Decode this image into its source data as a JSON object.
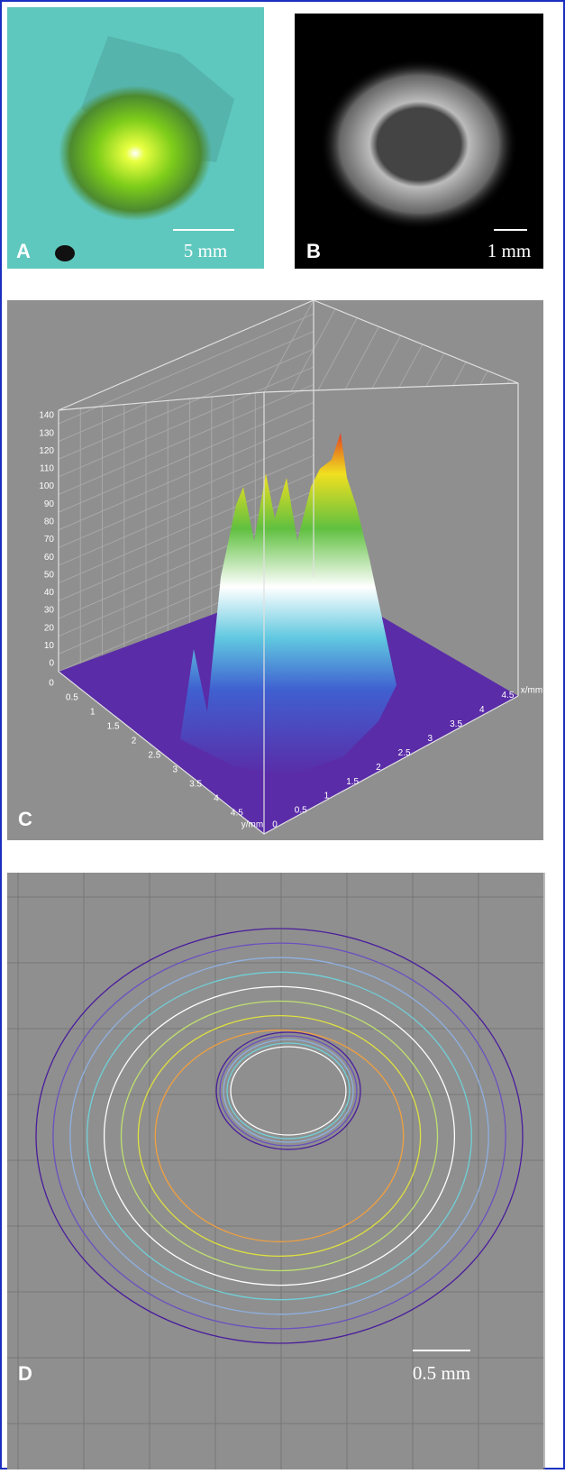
{
  "panels": {
    "a": {
      "label": "A",
      "scale_bar": "5 mm"
    },
    "b": {
      "label": "B",
      "scale_bar": "1 mm"
    },
    "c": {
      "label": "C",
      "z_ticks": [
        "0",
        "10",
        "20",
        "30",
        "40",
        "50",
        "60",
        "70",
        "80",
        "90",
        "100",
        "110",
        "120",
        "130",
        "140"
      ],
      "x_ticks": [
        "0",
        "0.5",
        "1",
        "1.5",
        "2",
        "2.5",
        "3",
        "3.5",
        "4",
        "4.5"
      ],
      "y_ticks": [
        "0",
        "0.5",
        "1",
        "1.5",
        "2",
        "2.5",
        "3",
        "3.5",
        "4",
        "4.5"
      ],
      "x_axis_label": "x/mm",
      "y_axis_label": "y/mm"
    },
    "d": {
      "label": "D",
      "scale_bar": "0.5 mm"
    }
  }
}
